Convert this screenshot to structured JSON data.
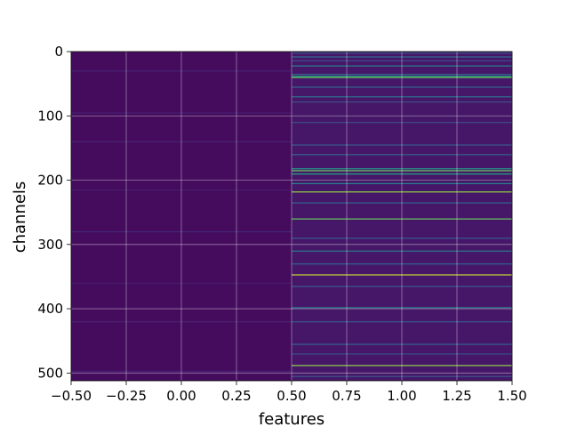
{
  "chart_data": {
    "type": "heatmap",
    "title": "",
    "xlabel": "features",
    "ylabel": "channels",
    "colormap": "viridis",
    "grid": true,
    "x_range": [
      -0.5,
      1.5
    ],
    "y_range": [
      512,
      0
    ],
    "x_ticks": [
      -0.5,
      -0.25,
      0.0,
      0.25,
      0.5,
      0.75,
      1.0,
      1.25,
      1.5
    ],
    "x_tick_labels": [
      "−0.50",
      "−0.25",
      "0.00",
      "0.25",
      "0.50",
      "0.75",
      "1.00",
      "1.25",
      "1.50"
    ],
    "y_ticks": [
      0,
      100,
      200,
      300,
      400,
      500
    ],
    "y_tick_labels": [
      "0",
      "100",
      "200",
      "300",
      "400",
      "500"
    ],
    "columns": [
      {
        "feature_index": 0,
        "x_extent": [
          -0.5,
          0.5
        ],
        "baseline_value": 0.04,
        "rows": [
          {
            "channel": 30,
            "value": 0.12
          },
          {
            "channel": 95,
            "value": 0.1
          },
          {
            "channel": 140,
            "value": 0.12
          },
          {
            "channel": 215,
            "value": 0.1
          },
          {
            "channel": 280,
            "value": 0.14
          },
          {
            "channel": 360,
            "value": 0.1
          },
          {
            "channel": 420,
            "value": 0.12
          },
          {
            "channel": 497,
            "value": 0.12
          }
        ]
      },
      {
        "feature_index": 1,
        "x_extent": [
          0.5,
          1.5
        ],
        "baseline_value": 0.08,
        "rows": [
          {
            "channel": 2,
            "value": 0.35
          },
          {
            "channel": 8,
            "value": 0.45
          },
          {
            "channel": 14,
            "value": 0.3
          },
          {
            "channel": 22,
            "value": 0.55
          },
          {
            "channel": 35,
            "value": 0.4
          },
          {
            "channel": 38,
            "value": 0.7
          },
          {
            "channel": 40,
            "value": 0.85
          },
          {
            "channel": 55,
            "value": 0.4
          },
          {
            "channel": 70,
            "value": 0.45
          },
          {
            "channel": 78,
            "value": 0.3
          },
          {
            "channel": 110,
            "value": 0.3
          },
          {
            "channel": 145,
            "value": 0.35
          },
          {
            "channel": 160,
            "value": 0.4
          },
          {
            "channel": 182,
            "value": 0.7
          },
          {
            "channel": 185,
            "value": 0.85
          },
          {
            "channel": 190,
            "value": 0.75
          },
          {
            "channel": 205,
            "value": 0.55
          },
          {
            "channel": 218,
            "value": 0.9
          },
          {
            "channel": 235,
            "value": 0.4
          },
          {
            "channel": 260,
            "value": 0.85
          },
          {
            "channel": 290,
            "value": 0.35
          },
          {
            "channel": 310,
            "value": 0.5
          },
          {
            "channel": 330,
            "value": 0.4
          },
          {
            "channel": 347,
            "value": 0.95
          },
          {
            "channel": 365,
            "value": 0.35
          },
          {
            "channel": 398,
            "value": 0.5
          },
          {
            "channel": 420,
            "value": 0.35
          },
          {
            "channel": 455,
            "value": 0.4
          },
          {
            "channel": 470,
            "value": 0.3
          },
          {
            "channel": 488,
            "value": 0.9
          },
          {
            "channel": 505,
            "value": 0.35
          }
        ]
      }
    ]
  }
}
